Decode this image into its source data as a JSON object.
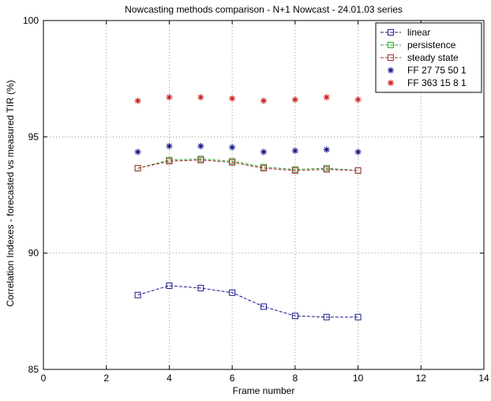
{
  "chart_data": {
    "type": "line",
    "title": "Nowcasting methods comparison - N+1 Nowcast - 24.01.03 series",
    "xlabel": "Frame number",
    "ylabel": "Correlation Indexes - forecasted vs measured TIR (%)",
    "xlim": [
      0,
      14
    ],
    "ylim": [
      85,
      100
    ],
    "xticks": [
      0,
      2,
      4,
      6,
      8,
      10,
      12,
      14
    ],
    "yticks": [
      85,
      90,
      95,
      100
    ],
    "grid": true,
    "legend_position": "top-right",
    "series": [
      {
        "name": "linear",
        "marker": "square",
        "line": "dashed",
        "color": "#1a1a8a",
        "x": [
          3,
          4,
          5,
          6,
          7,
          8,
          9,
          10
        ],
        "values": [
          88.2,
          88.6,
          88.5,
          88.3,
          87.7,
          87.3,
          87.25,
          87.25
        ]
      },
      {
        "name": "persistence",
        "marker": "square",
        "line": "dashed",
        "color": "#2ea82e",
        "x": [
          3,
          4,
          5,
          6,
          7,
          8,
          9,
          10
        ],
        "values": [
          93.65,
          94.0,
          94.05,
          93.95,
          93.7,
          93.6,
          93.65,
          93.55
        ]
      },
      {
        "name": "steady state",
        "marker": "square",
        "line": "dashed",
        "color": "#9a3030",
        "x": [
          3,
          4,
          5,
          6,
          7,
          8,
          9,
          10
        ],
        "values": [
          93.65,
          93.95,
          94.0,
          93.9,
          93.65,
          93.55,
          93.6,
          93.55
        ]
      },
      {
        "name": "FF 27 75 50 1",
        "marker": "star",
        "line": "none",
        "color": "#1a1a8a",
        "x": [
          3,
          4,
          5,
          6,
          7,
          8,
          9,
          10
        ],
        "values": [
          94.35,
          94.6,
          94.6,
          94.55,
          94.35,
          94.4,
          94.45,
          94.35
        ]
      },
      {
        "name": "FF 363 15 8 1",
        "marker": "star",
        "line": "none",
        "color": "#cc2222",
        "x": [
          3,
          4,
          5,
          6,
          7,
          8,
          9,
          10
        ],
        "values": [
          96.55,
          96.7,
          96.7,
          96.65,
          96.55,
          96.6,
          96.7,
          96.6
        ]
      }
    ]
  }
}
